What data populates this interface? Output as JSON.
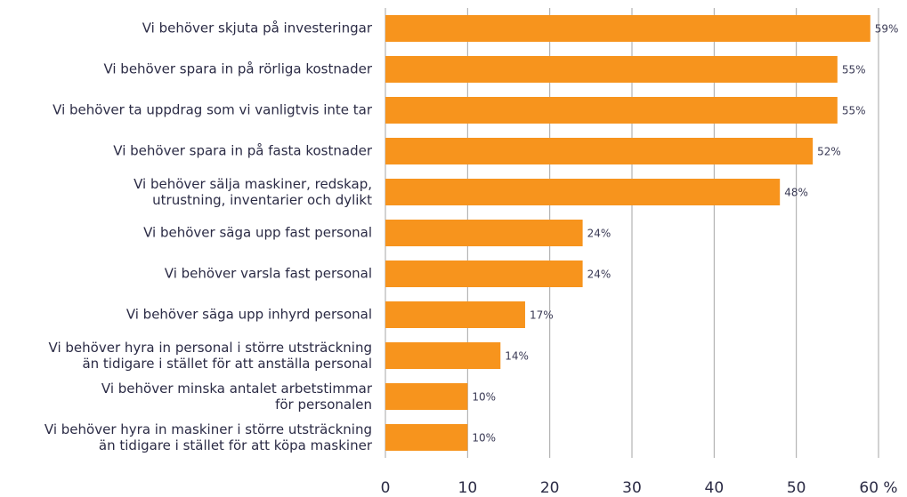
{
  "chart_data": {
    "type": "hbar",
    "categories": [
      "Vi behöver skjuta på investeringar",
      "Vi behöver spara in på rörliga kostnader",
      "Vi behöver ta uppdrag som vi vanligtvis inte tar",
      "Vi behöver spara in på fasta kostnader",
      "Vi behöver sälja maskiner, redskap,\nutrustning, inventarier och dylikt",
      "Vi behöver säga upp fast personal",
      "Vi behöver varsla fast personal ",
      "Vi behöver säga upp inhyrd personal",
      "Vi behöver hyra in personal i större utsträckning\nän tidigare i stället för att anställa personal",
      "Vi behöver minska antalet arbetstimmar\nför personalen",
      "Vi behöver hyra in maskiner i större utsträckning\nän tidigare i stället för att köpa maskiner"
    ],
    "values": [
      59,
      55,
      55,
      52,
      48,
      24,
      24,
      17,
      14,
      10,
      10
    ],
    "value_labels": [
      "59%",
      "55%",
      "55%",
      "52%",
      "48%",
      "24%",
      "24%",
      "17%",
      "14%",
      "10%",
      "10%"
    ],
    "color": "#f7941d",
    "xlim": [
      0,
      60
    ],
    "xticks": [
      0,
      10,
      20,
      30,
      40,
      50,
      {
        "value": 60,
        "label": "60 %"
      }
    ],
    "grid": true
  }
}
